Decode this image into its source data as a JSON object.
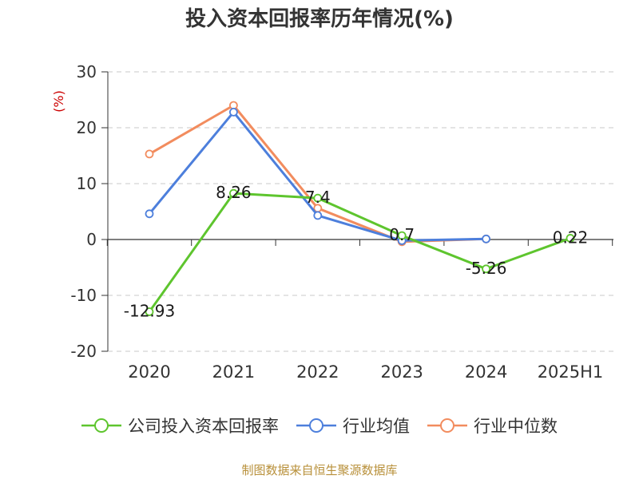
{
  "title": "投入资本回报率历年情况(%)",
  "source": "制图数据来自恒生聚源数据库",
  "chart_data": {
    "type": "line",
    "categories": [
      "2020",
      "2021",
      "2022",
      "2023",
      "2024",
      "2025H1"
    ],
    "ylabel": "(%)",
    "ylim": [
      -20,
      30
    ],
    "yticks": [
      -20,
      -10,
      0,
      10,
      20,
      30
    ],
    "grid": true,
    "legend_position": "bottom",
    "series": [
      {
        "name": "公司投入资本回报率",
        "color": "#5ec52e",
        "values": [
          -12.93,
          8.26,
          7.4,
          0.7,
          -5.26,
          0.22
        ],
        "labels": [
          "-12.93",
          "8.26",
          "7.4",
          "0.7",
          "-5.26",
          "0.22"
        ]
      },
      {
        "name": "行业均值",
        "color": "#4d7fdc",
        "values": [
          4.6,
          22.8,
          4.3,
          -0.2,
          0.1,
          null
        ]
      },
      {
        "name": "行业中位数",
        "color": "#f28c5e",
        "values": [
          15.3,
          24.0,
          5.6,
          -0.4,
          0.1,
          null
        ]
      }
    ]
  }
}
